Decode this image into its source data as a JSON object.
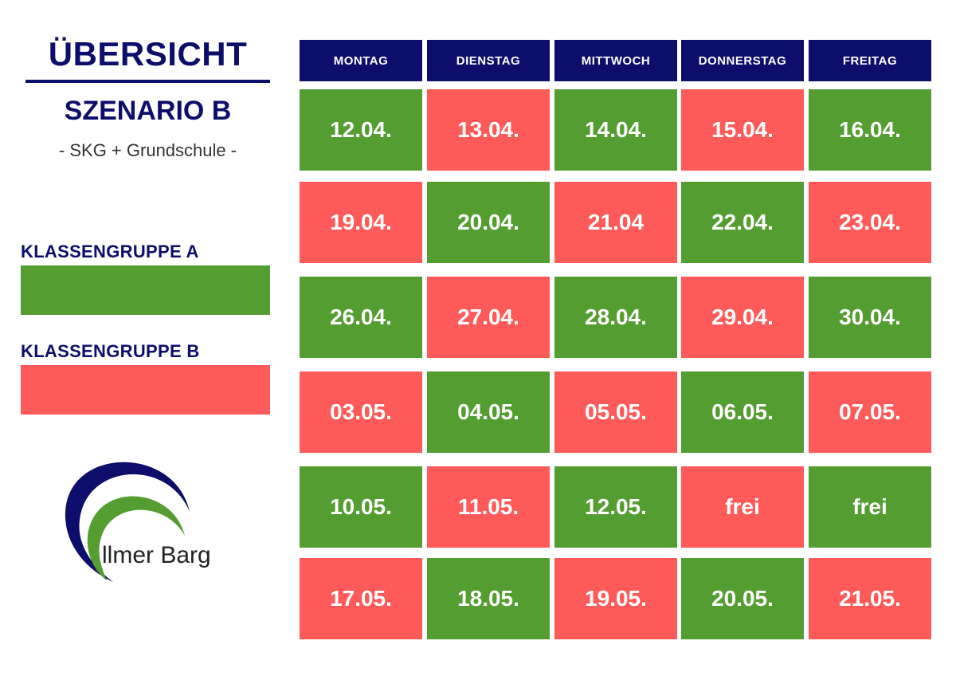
{
  "title": "ÜBERSICHT",
  "subtitle": "SZENARIO B",
  "subline": "- SKG + Grundschule -",
  "colors": {
    "green": "#549d31",
    "red": "#fe5a5a",
    "navy": "#0d0d6b"
  },
  "legend": [
    {
      "label": "KLASSENGRUPPE A",
      "color": "green"
    },
    {
      "label": "KLASSENGRUPPE B",
      "color": "red"
    }
  ],
  "logo_text": "llmer Barg",
  "days": [
    "MONTAG",
    "DIENSTAG",
    "MITTWOCH",
    "DONNERSTAG",
    "FREITAG"
  ],
  "weeks": [
    {
      "cells": [
        {
          "text": "12.04.",
          "group": "A"
        },
        {
          "text": "13.04.",
          "group": "B"
        },
        {
          "text": "14.04.",
          "group": "A"
        },
        {
          "text": "15.04.",
          "group": "B"
        },
        {
          "text": "16.04.",
          "group": "A"
        }
      ]
    },
    {
      "cells": [
        {
          "text": "19.04.",
          "group": "B"
        },
        {
          "text": "20.04.",
          "group": "A"
        },
        {
          "text": "21.04",
          "group": "B"
        },
        {
          "text": "22.04.",
          "group": "A"
        },
        {
          "text": "23.04.",
          "group": "B"
        }
      ]
    },
    {
      "cells": [
        {
          "text": "26.04.",
          "group": "A"
        },
        {
          "text": "27.04.",
          "group": "B"
        },
        {
          "text": "28.04.",
          "group": "A"
        },
        {
          "text": "29.04.",
          "group": "B"
        },
        {
          "text": "30.04.",
          "group": "A"
        }
      ]
    },
    {
      "cells": [
        {
          "text": "03.05.",
          "group": "B"
        },
        {
          "text": "04.05.",
          "group": "A"
        },
        {
          "text": "05.05.",
          "group": "B"
        },
        {
          "text": "06.05.",
          "group": "A"
        },
        {
          "text": "07.05.",
          "group": "B"
        }
      ]
    },
    {
      "cells": [
        {
          "text": "10.05.",
          "group": "A"
        },
        {
          "text": "11.05.",
          "group": "B"
        },
        {
          "text": "12.05.",
          "group": "A"
        },
        {
          "text": "frei",
          "group": "B"
        },
        {
          "text": "frei",
          "group": "A"
        }
      ]
    },
    {
      "cells": [
        {
          "text": "17.05.",
          "group": "B"
        },
        {
          "text": "18.05.",
          "group": "A"
        },
        {
          "text": "19.05.",
          "group": "B"
        },
        {
          "text": "20.05.",
          "group": "A"
        },
        {
          "text": "21.05.",
          "group": "B"
        }
      ]
    }
  ]
}
